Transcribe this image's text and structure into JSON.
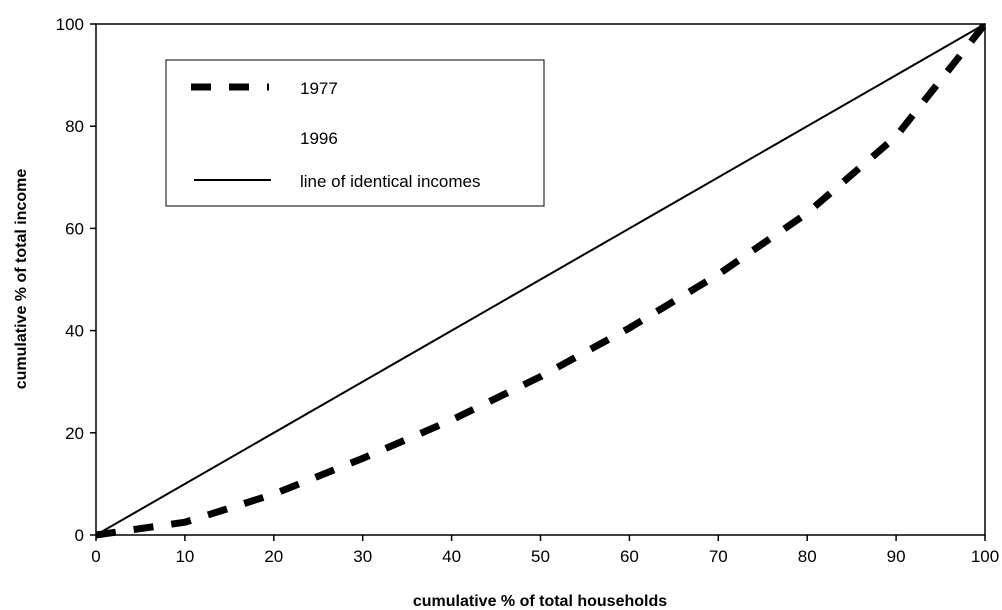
{
  "chart_data": {
    "type": "line",
    "title": "",
    "xlabel": "cumulative % of total households",
    "ylabel": "cumulative % of total income",
    "xlim": [
      0,
      100
    ],
    "ylim": [
      0,
      100
    ],
    "x_ticks": [
      0,
      10,
      20,
      30,
      40,
      50,
      60,
      70,
      80,
      90,
      100
    ],
    "y_ticks": [
      0,
      20,
      40,
      60,
      80,
      100
    ],
    "grid": false,
    "legend_position": "top-left",
    "series": [
      {
        "name": "1977",
        "style": "dashed-thick",
        "color": "#000000",
        "x": [
          0,
          10,
          20,
          30,
          40,
          50,
          60,
          70,
          80,
          90,
          100
        ],
        "y": [
          0,
          2.5,
          8,
          15,
          22.5,
          31,
          40.5,
          51,
          63,
          78,
          100
        ]
      },
      {
        "name": "1996",
        "style": "hidden",
        "color": "#000000",
        "x": [],
        "y": []
      },
      {
        "name": "line of identical incomes",
        "style": "solid",
        "color": "#000000",
        "x": [
          0,
          100
        ],
        "y": [
          0,
          100
        ]
      }
    ]
  }
}
